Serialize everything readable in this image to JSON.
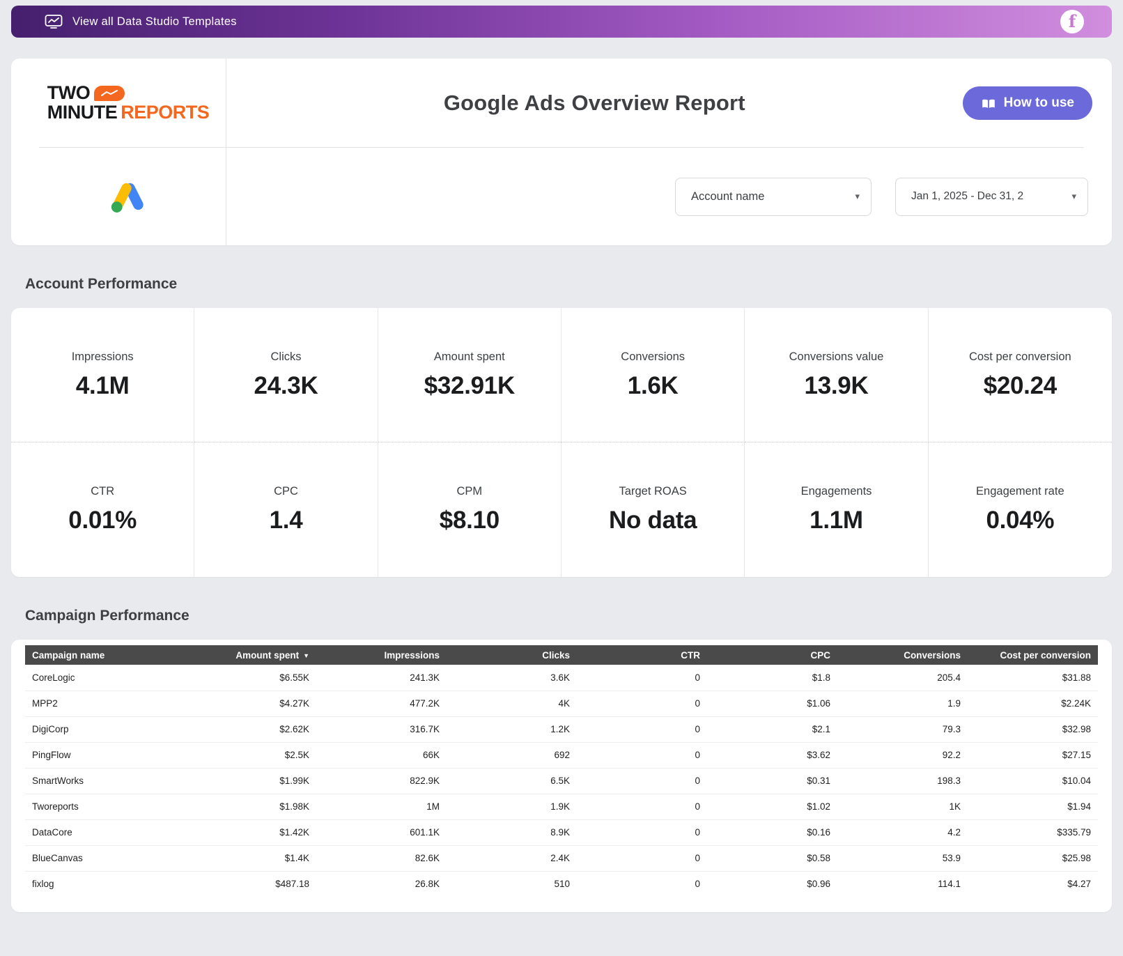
{
  "banner": {
    "label": "View all Data Studio Templates"
  },
  "header": {
    "logo": {
      "word1": "TWO",
      "word2": "MINUTE",
      "word3": "REPORTS"
    },
    "title": "Google Ads Overview Report",
    "how_to_use": "How to use",
    "account_select": "Account name",
    "date_range": "Jan 1, 2025 - Dec 31, 2"
  },
  "account_performance": {
    "heading": "Account Performance",
    "metrics": [
      {
        "label": "Impressions",
        "value": "4.1M"
      },
      {
        "label": "Clicks",
        "value": "24.3K"
      },
      {
        "label": "Amount spent",
        "value": "$32.91K"
      },
      {
        "label": "Conversions",
        "value": "1.6K"
      },
      {
        "label": "Conversions value",
        "value": "13.9K"
      },
      {
        "label": "Cost per conversion",
        "value": "$20.24"
      },
      {
        "label": "CTR",
        "value": "0.01%"
      },
      {
        "label": "CPC",
        "value": "1.4"
      },
      {
        "label": "CPM",
        "value": "$8.10"
      },
      {
        "label": "Target ROAS",
        "value": "No data"
      },
      {
        "label": "Engagements",
        "value": "1.1M"
      },
      {
        "label": "Engagement rate",
        "value": "0.04%"
      }
    ]
  },
  "campaign_performance": {
    "heading": "Campaign Performance",
    "columns": [
      "Campaign name",
      "Amount spent",
      "Impressions",
      "Clicks",
      "CTR",
      "CPC",
      "Conversions",
      "Cost per conversion"
    ],
    "sorted_column": "Amount spent",
    "sort_direction": "desc",
    "rows": [
      [
        "CoreLogic",
        "$6.55K",
        "241.3K",
        "3.6K",
        "0",
        "$1.8",
        "205.4",
        "$31.88"
      ],
      [
        "MPP2",
        "$4.27K",
        "477.2K",
        "4K",
        "0",
        "$1.06",
        "1.9",
        "$2.24K"
      ],
      [
        "DigiCorp",
        "$2.62K",
        "316.7K",
        "1.2K",
        "0",
        "$2.1",
        "79.3",
        "$32.98"
      ],
      [
        "PingFlow",
        "$2.5K",
        "66K",
        "692",
        "0",
        "$3.62",
        "92.2",
        "$27.15"
      ],
      [
        "SmartWorks",
        "$1.99K",
        "822.9K",
        "6.5K",
        "0",
        "$0.31",
        "198.3",
        "$10.04"
      ],
      [
        "Tworeports",
        "$1.98K",
        "1M",
        "1.9K",
        "0",
        "$1.02",
        "1K",
        "$1.94"
      ],
      [
        "DataCore",
        "$1.42K",
        "601.1K",
        "8.9K",
        "0",
        "$0.16",
        "4.2",
        "$335.79"
      ],
      [
        "BlueCanvas",
        "$1.4K",
        "82.6K",
        "2.4K",
        "0",
        "$0.58",
        "53.9",
        "$25.98"
      ],
      [
        "fixlog",
        "$487.18",
        "26.8K",
        "510",
        "0",
        "$0.96",
        "114.1",
        "$4.27"
      ]
    ]
  },
  "colors": {
    "banner_gradient_start": "#45206e",
    "banner_gradient_end": "#d18ede",
    "accent_button": "#6c6ada",
    "logo_orange": "#f4671f",
    "table_header_bg": "#4a4a4a",
    "google_blue": "#4285f4",
    "google_yellow": "#fbbc04",
    "google_green": "#34a853",
    "page_background": "#e8eaee"
  }
}
